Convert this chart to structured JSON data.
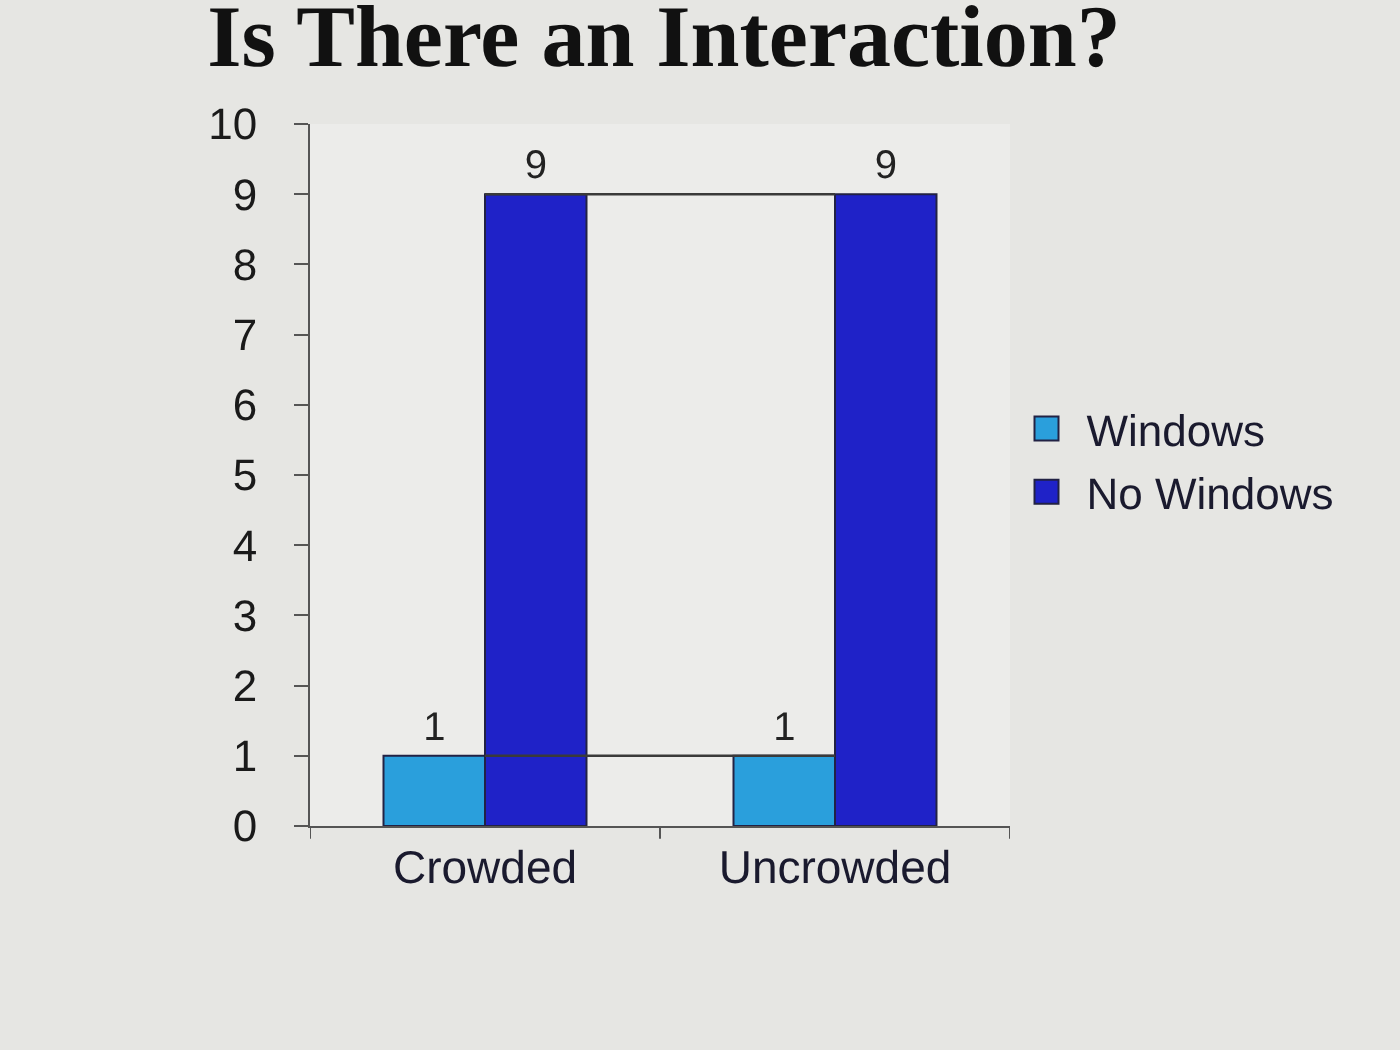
{
  "chart_data": {
    "type": "bar",
    "title": "Is There an Interaction?",
    "categories": [
      "Crowded",
      "Uncrowded"
    ],
    "series": [
      {
        "name": "Windows",
        "color": "#2a9fdc",
        "values": [
          1,
          1
        ],
        "value_labels": [
          "1",
          "1"
        ]
      },
      {
        "name": "No Windows",
        "color": "#1f22c8",
        "values": [
          9,
          9
        ],
        "value_labels": [
          "9",
          "9"
        ]
      },
      {
        "type": "line",
        "color": "#3a3a3a",
        "values": [
          1,
          1
        ]
      },
      {
        "type": "line",
        "color": "#3a3a3a",
        "values": [
          9,
          9
        ]
      }
    ],
    "ylim": [
      0,
      10
    ],
    "yticks": [
      0,
      1,
      2,
      3,
      4,
      5,
      6,
      7,
      8,
      9,
      10
    ],
    "legend": "right",
    "marker": "none"
  }
}
